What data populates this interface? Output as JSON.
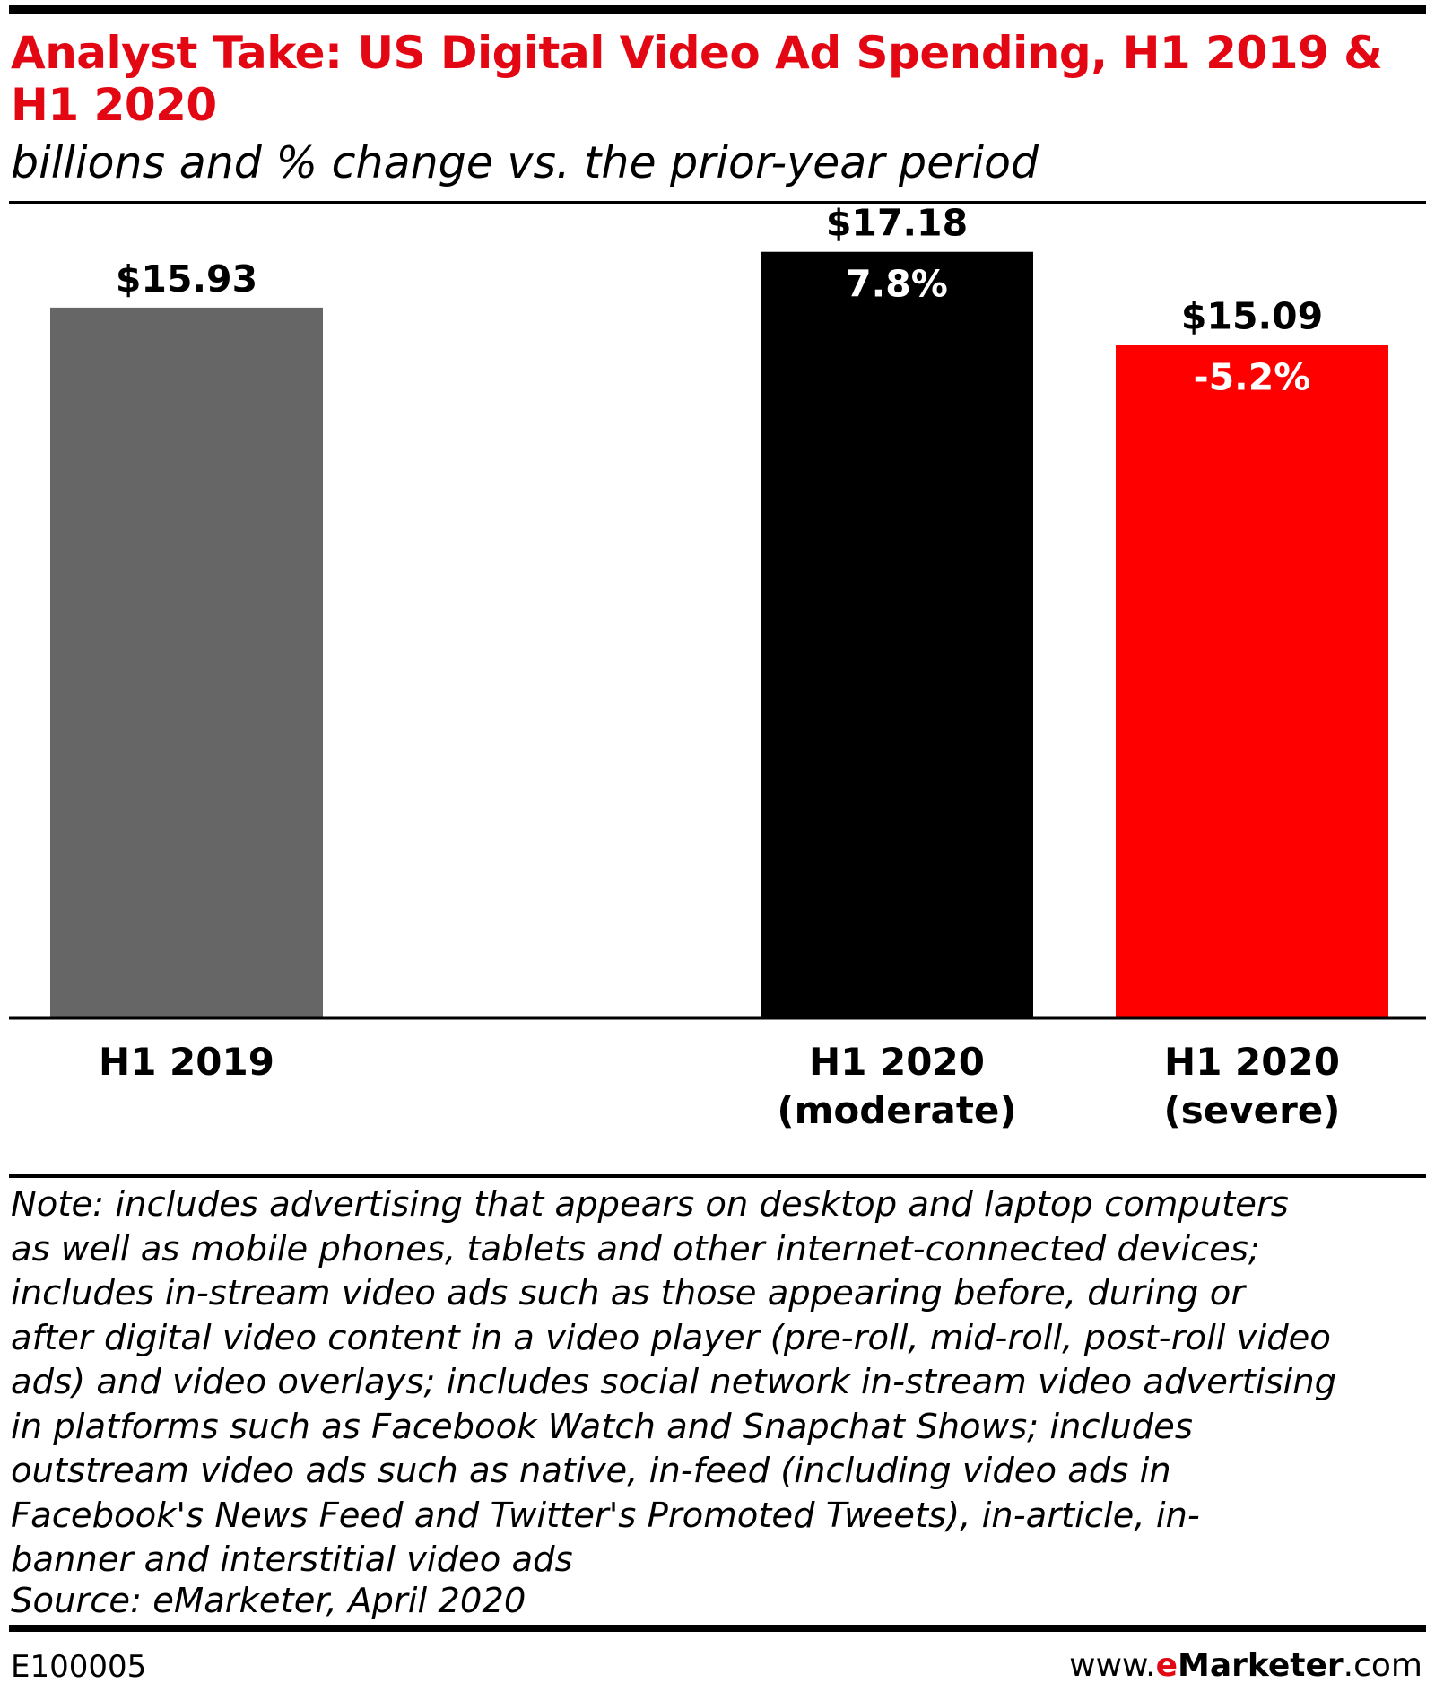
{
  "header": {
    "title": "Analyst Take: US Digital Video Ad Spending, H1 2019 & H1 2020",
    "subtitle": "billions and % change vs. the prior-year period"
  },
  "chart_data": {
    "type": "bar",
    "title": "Analyst Take: US Digital Video Ad Spending, H1 2019 & H1 2020",
    "subtitle": "billions and % change vs. the prior-year period",
    "categories": [
      "H1 2019",
      "H1 2020 (moderate)",
      "H1 2020 (severe)"
    ],
    "category_lines": [
      [
        "H1 2019"
      ],
      [
        "H1 2020",
        "(moderate)"
      ],
      [
        "H1 2020",
        "(severe)"
      ]
    ],
    "values": [
      15.93,
      17.18,
      15.09
    ],
    "value_labels": [
      "$15.93",
      "$17.18",
      "$15.09"
    ],
    "pct_change_labels": [
      "",
      "7.8%",
      "-5.2%"
    ],
    "colors": [
      "#666666",
      "#000000",
      "#ff0000"
    ],
    "ylim": [
      0,
      18.2
    ],
    "grid": false,
    "legend": "none",
    "xlabel": "",
    "ylabel": ""
  },
  "footer": {
    "note_lines": [
      "Note: includes advertising that appears on desktop and laptop computers",
      "as well as mobile phones, tablets and other internet-connected devices;",
      "includes in-stream video ads such as those appearing before, during or",
      "after digital video content in a video player (pre-roll, mid-roll, post-roll video",
      "ads) and video overlays; includes social network in-stream video advertising",
      "in platforms such as Facebook Watch and Snapchat Shows; includes",
      "outstream video ads such as native, in-feed (including video ads in",
      "Facebook's News Feed and Twitter's Promoted Tweets), in-article, in-",
      "banner and interstitial video ads"
    ],
    "source": "Source: eMarketer, April 2020",
    "chart_id": "E100005",
    "site_prefix": "www.",
    "site_e": "e",
    "site_brand_rest": "Marketer",
    "site_suffix": ".com"
  }
}
